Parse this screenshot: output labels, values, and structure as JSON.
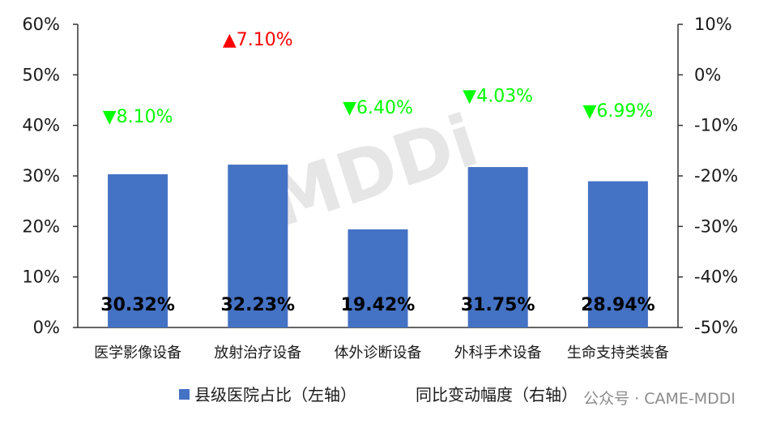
{
  "chart_data": {
    "type": "bar",
    "title": "",
    "categories": [
      "医学影像设备",
      "放射治疗设备",
      "体外诊断设备",
      "外科手术设备",
      "生命支持类装备"
    ],
    "series": [
      {
        "name": "县级医院占比（左轴）",
        "axis": "left",
        "color": "#4472C4",
        "values": [
          30.32,
          32.23,
          19.42,
          31.75,
          28.94
        ],
        "labels": [
          "30.32%",
          "32.23%",
          "19.42%",
          "31.75%",
          "28.94%"
        ]
      },
      {
        "name": "同比变动幅度（右轴）",
        "axis": "right",
        "values": [
          -8.1,
          7.1,
          -6.4,
          -4.03,
          -6.99
        ],
        "labels": [
          "▼8.10%",
          "▲7.10%",
          "▼6.40%",
          "▼4.03%",
          "▼6.99%"
        ],
        "label_colors": [
          "#00FF00",
          "#FF0000",
          "#00FF00",
          "#00FF00",
          "#00FF00"
        ]
      }
    ],
    "left_axis": {
      "ylim": [
        0,
        60
      ],
      "ticks": [
        "0%",
        "10%",
        "20%",
        "30%",
        "40%",
        "50%",
        "60%"
      ]
    },
    "right_axis": {
      "ylim": [
        -50,
        10
      ],
      "ticks": [
        "-50%",
        "-40%",
        "-30%",
        "-20%",
        "-10%",
        "0%",
        "10%"
      ]
    },
    "grid": false,
    "legend_position": "bottom"
  },
  "watermark": "MDDi",
  "credit": "公众号 · CAME-MDDI"
}
